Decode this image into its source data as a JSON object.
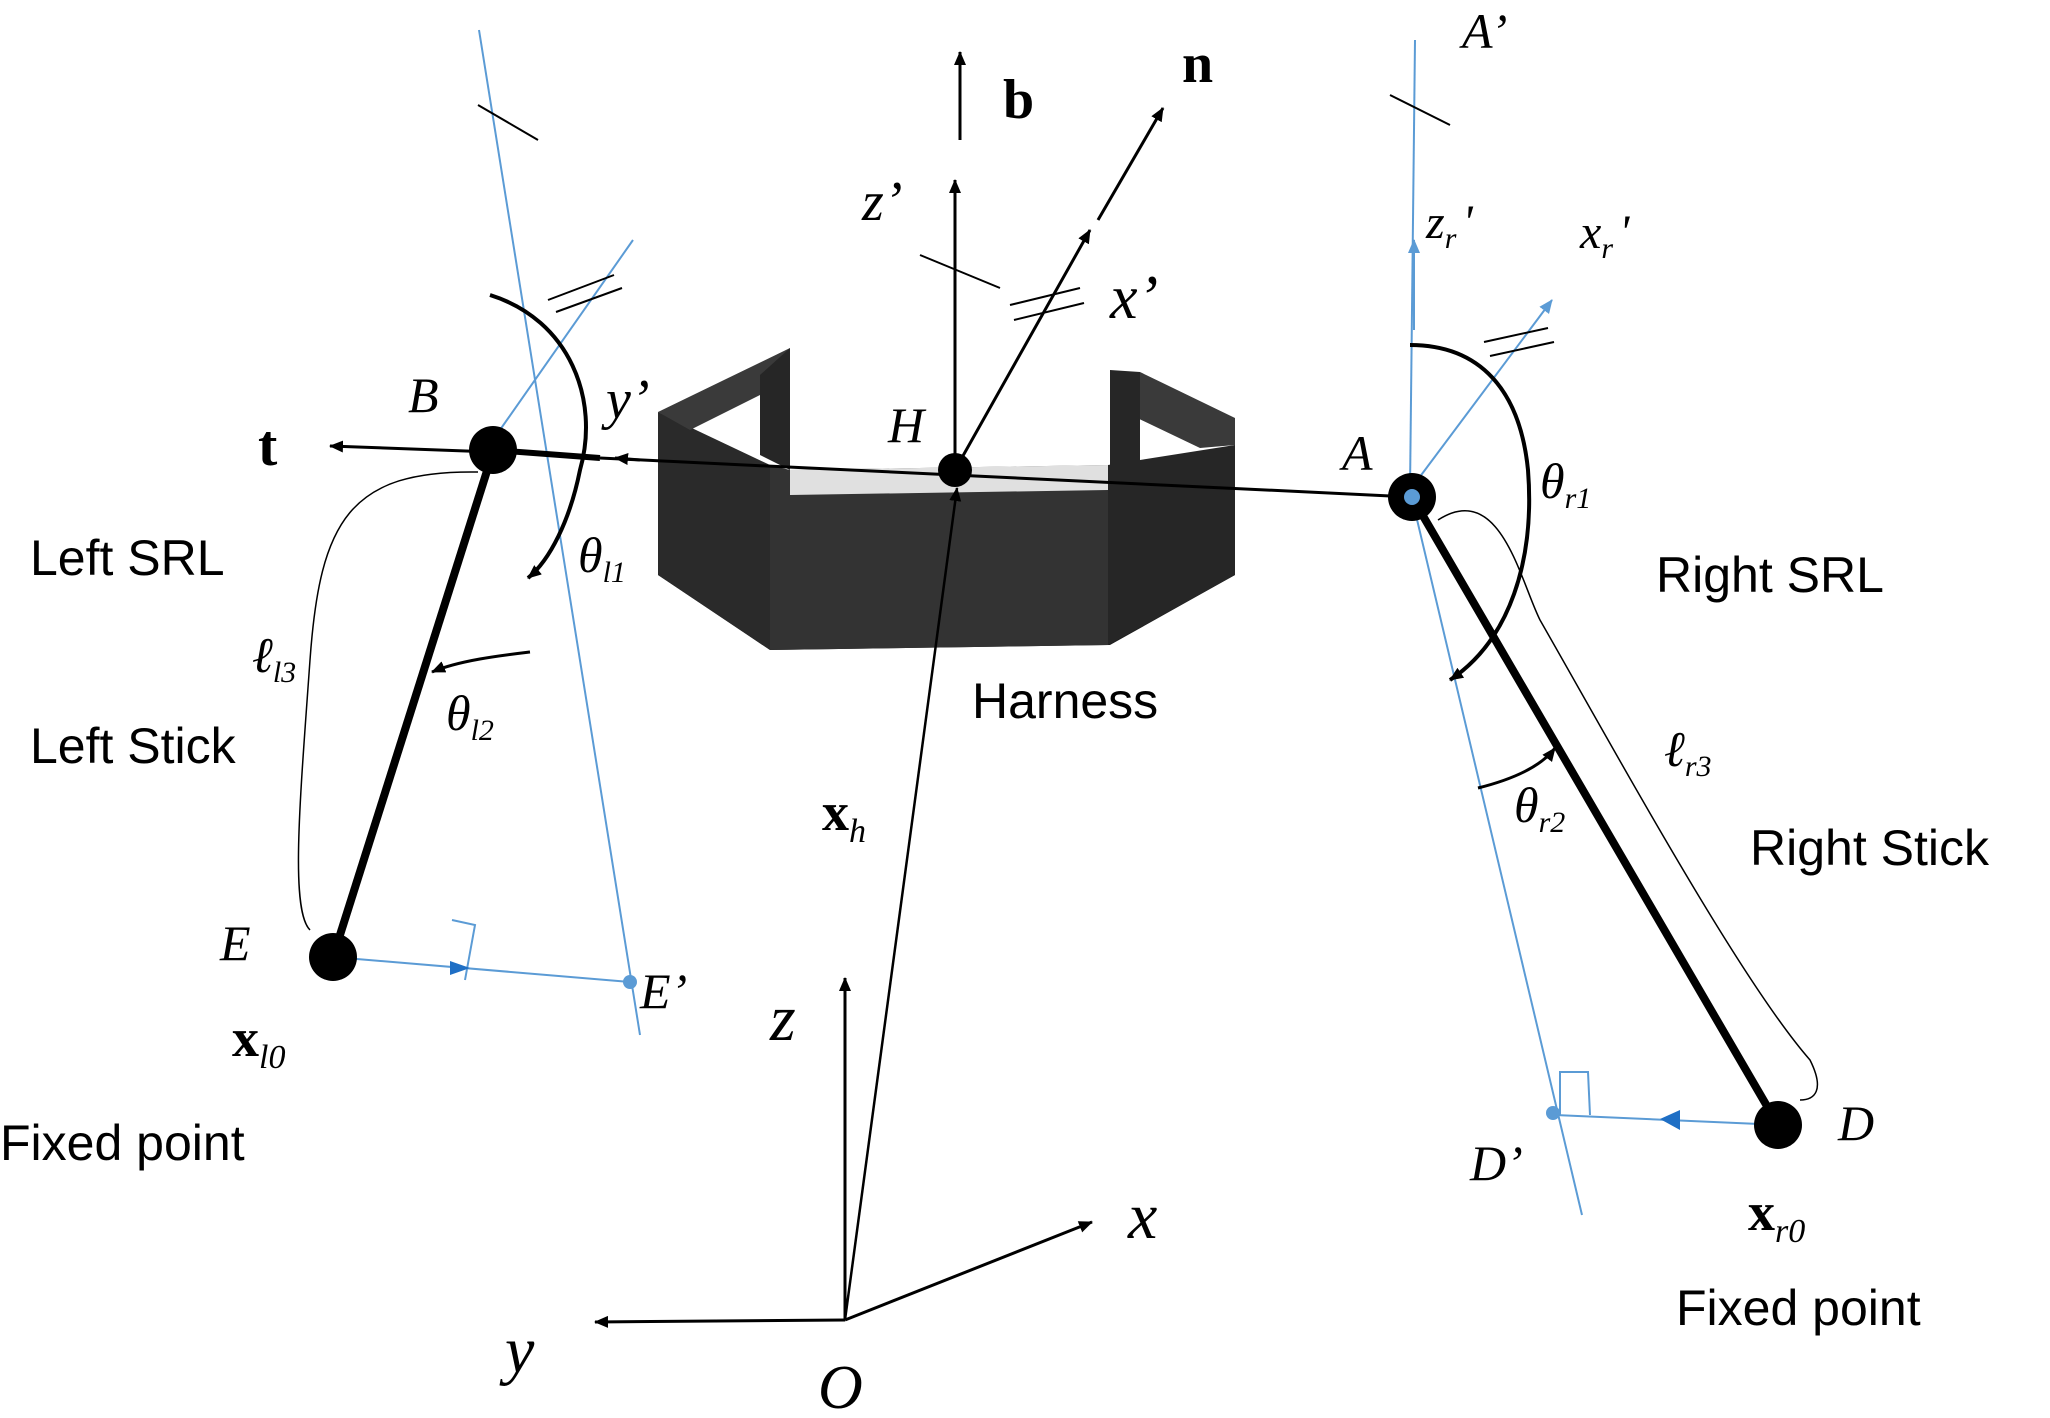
{
  "labels": {
    "left_srl": "Left SRL",
    "left_stick": "Left Stick",
    "right_srl": "Right SRL",
    "right_stick": "Right Stick",
    "harness": "Harness",
    "fixed_left": "Fixed point",
    "fixed_right": "Fixed point"
  },
  "points": {
    "B": "B",
    "A": "A",
    "A_prime": "A’",
    "H": "H",
    "O": "O",
    "E": "E",
    "E_prime": "E’",
    "D": "D",
    "D_prime": "D’"
  },
  "vectors": {
    "b": "b",
    "n": "n",
    "t": "t",
    "z_prime": "z’",
    "x_prime": "x’",
    "y_prime": "y’",
    "xh": "x",
    "xh_sub": "h",
    "xl0": "x",
    "xl0_sub": "l0",
    "xr0": "x",
    "xr0_sub": "r0"
  },
  "right_frame": {
    "zr": "z",
    "zr_sub": "r",
    "zr_tick": "'",
    "xr": "x",
    "xr_sub": "r",
    "xr_tick": "'"
  },
  "angles": {
    "theta": "θ",
    "l1": "l1",
    "l2": "l2",
    "r1": "r1",
    "r2": "r2"
  },
  "lengths": {
    "ell": "ℓ",
    "l3": "l3",
    "r3": "r3"
  },
  "world_axes": {
    "x": "x",
    "y": "y",
    "z": "z"
  },
  "colors": {
    "construction": "#5b9bd5",
    "ink": "#000000",
    "harness": "#2b2b2b"
  }
}
